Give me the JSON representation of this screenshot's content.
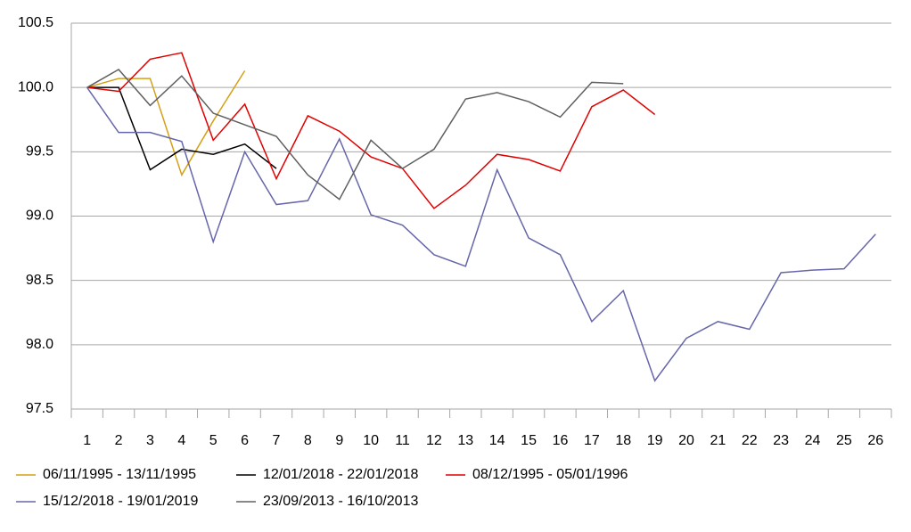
{
  "chart_data": {
    "type": "line",
    "categories": [
      "1",
      "2",
      "3",
      "4",
      "5",
      "6",
      "7",
      "8",
      "9",
      "10",
      "11",
      "12",
      "13",
      "14",
      "15",
      "16",
      "17",
      "18",
      "19",
      "20",
      "21",
      "22",
      "23",
      "24",
      "25",
      "26"
    ],
    "series": [
      {
        "name": "06/11/1995 - 13/11/1995",
        "color": "#d4a017",
        "values": [
          100.0,
          100.07,
          100.07,
          99.32,
          99.74,
          100.13,
          null,
          null,
          null,
          null,
          null,
          null,
          null,
          null,
          null,
          null,
          null,
          null,
          null,
          null,
          null,
          null,
          null,
          null,
          null,
          null
        ]
      },
      {
        "name": "12/01/2018 - 22/01/2018",
        "color": "#000000",
        "values": [
          100.0,
          100.0,
          99.36,
          99.52,
          99.48,
          99.56,
          99.37,
          null,
          null,
          null,
          null,
          null,
          null,
          null,
          null,
          null,
          null,
          null,
          null,
          null,
          null,
          null,
          null,
          null,
          null,
          null
        ]
      },
      {
        "name": "08/12/1995 - 05/01/1996",
        "color": "#e00000",
        "values": [
          100.0,
          99.97,
          100.22,
          100.27,
          99.59,
          99.87,
          99.29,
          99.78,
          99.66,
          99.46,
          99.37,
          99.06,
          99.24,
          99.48,
          99.44,
          99.35,
          99.85,
          99.98,
          99.79,
          null,
          null,
          null,
          null,
          null,
          null,
          null
        ]
      },
      {
        "name": "15/12/2018 - 19/01/2019",
        "color": "#6666aa",
        "values": [
          100.0,
          99.65,
          99.65,
          99.58,
          98.8,
          99.5,
          99.09,
          99.12,
          99.6,
          99.01,
          98.93,
          98.7,
          98.61,
          99.36,
          98.83,
          98.7,
          98.18,
          98.42,
          97.72,
          98.05,
          98.18,
          98.12,
          98.56,
          98.58,
          98.59,
          98.86
        ]
      },
      {
        "name": "23/09/2013 - 16/10/2013",
        "color": "#606060",
        "values": [
          100.0,
          100.14,
          99.86,
          100.09,
          99.8,
          99.71,
          99.62,
          99.32,
          99.13,
          99.59,
          99.37,
          99.52,
          99.91,
          99.96,
          99.89,
          99.77,
          100.04,
          100.03,
          null,
          null,
          null,
          null,
          null,
          null,
          null,
          null
        ]
      }
    ],
    "ylim": [
      97.5,
      100.5
    ],
    "yticks": [
      97.5,
      {
        "value": 98.0,
        "label": "98.0"
      },
      98.5,
      {
        "value": 99.0,
        "label": "99.0"
      },
      99.5,
      {
        "value": 100.0,
        "label": "100.0"
      },
      100.5
    ],
    "grid": true
  }
}
